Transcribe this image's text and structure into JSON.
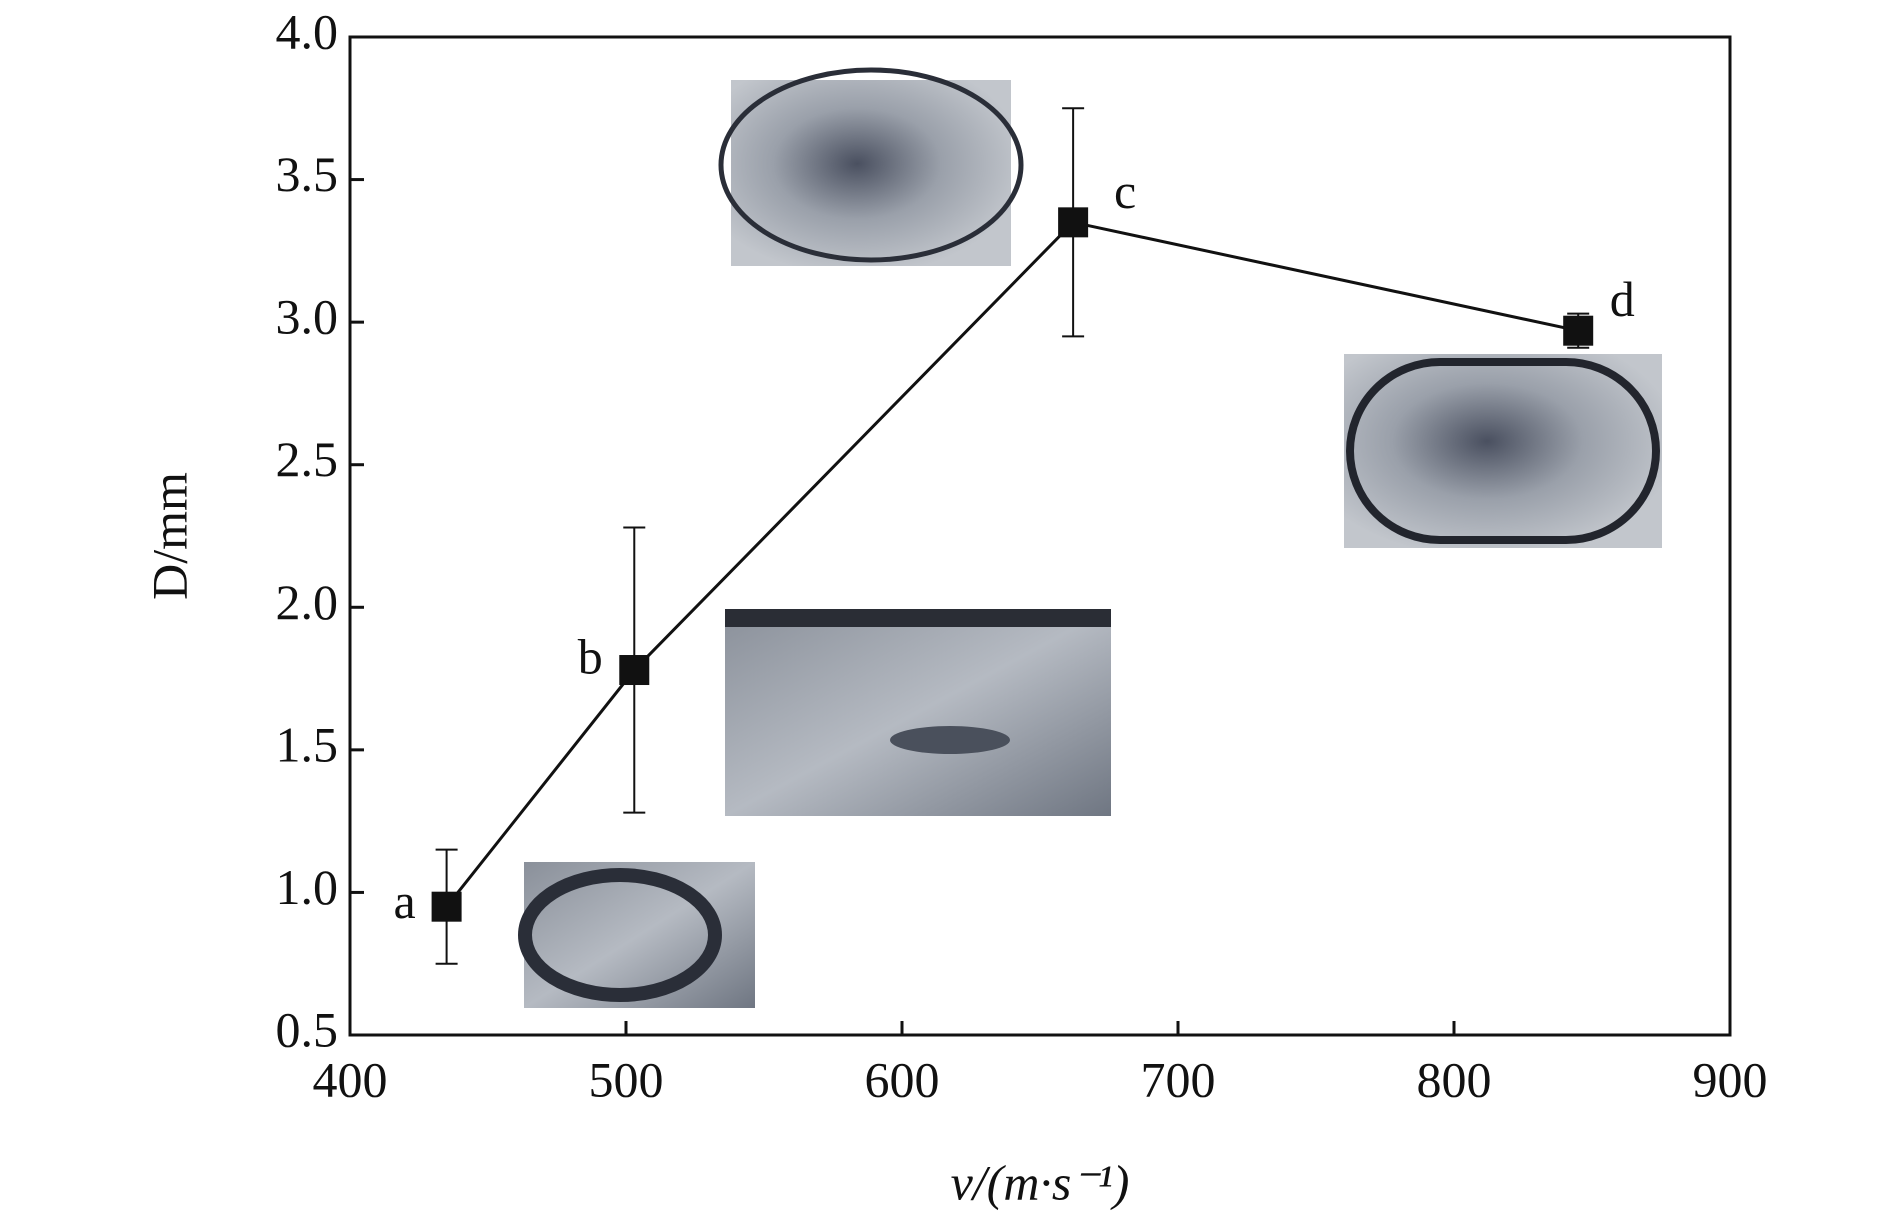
{
  "chart_data": {
    "type": "line",
    "x_label": "v/(m·s⁻¹)",
    "y_label": "D/mm",
    "x": [
      435,
      503,
      662,
      845
    ],
    "series": [
      {
        "color": "#111111",
        "values": [
          0.95,
          1.78,
          3.35,
          2.97
        ],
        "errors": [
          0.2,
          0.5,
          0.4,
          0.06
        ],
        "point_labels": [
          "a",
          "b",
          "c",
          "d"
        ]
      }
    ],
    "xlim": [
      400,
      900
    ],
    "xticks": [
      400,
      500,
      600,
      700,
      800,
      900
    ],
    "ylim": [
      0.5,
      4.0
    ],
    "yticks": [
      0.5,
      {
        "value": 1,
        "label": "1.0"
      },
      1.5,
      {
        "value": 2,
        "label": "2.0"
      },
      2.5,
      {
        "value": 3,
        "label": "3.0"
      },
      3.5,
      {
        "value": 4,
        "label": "4.0"
      }
    ],
    "grid": false
  }
}
